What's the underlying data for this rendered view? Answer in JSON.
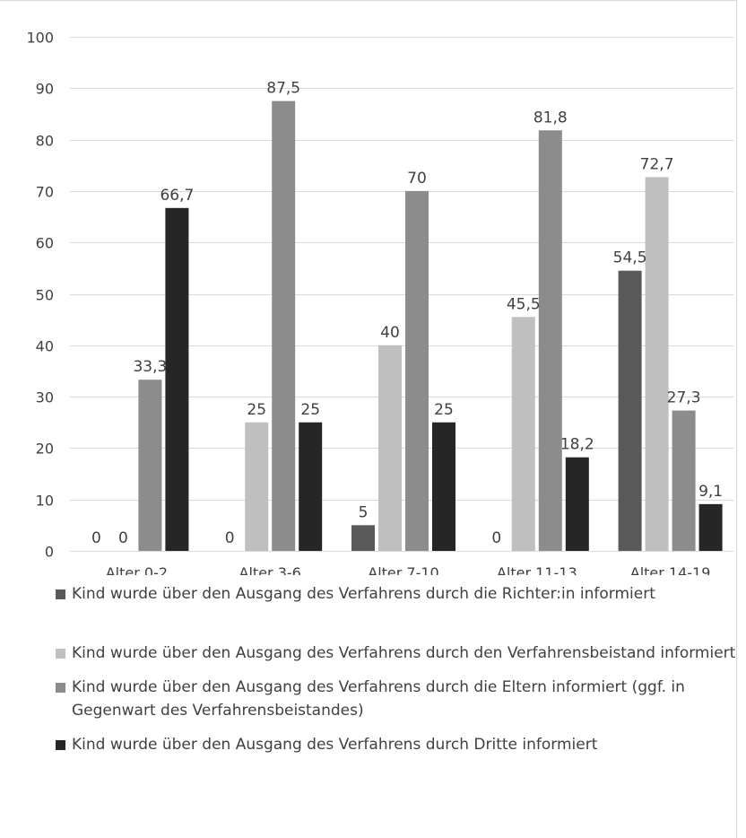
{
  "chart_data": {
    "type": "bar",
    "title": "",
    "xlabel": "",
    "ylabel": "",
    "ylim": [
      0,
      100
    ],
    "yticks": [
      0,
      10,
      20,
      30,
      40,
      50,
      60,
      70,
      80,
      90,
      100
    ],
    "grid": true,
    "legend_position": "bottom",
    "categories": [
      "Alter 0-2",
      "Alter 3-6",
      "Alter 7-10",
      "Alter 11-13",
      "Alter 14-19"
    ],
    "series": [
      {
        "name": "Kind wurde über den Ausgang des Verfahrens durch die Richter:in informiert",
        "color": "#595959",
        "values": [
          0,
          0,
          5,
          0,
          54.5
        ],
        "labels": [
          "0",
          "0",
          "5",
          "0",
          "54,5"
        ]
      },
      {
        "name": "Kind wurde über den Ausgang des Verfahrens durch den Verfahrensbeistand informiert",
        "color": "#bfbfbf",
        "values": [
          0,
          25,
          40,
          45.5,
          72.7
        ],
        "labels": [
          "0",
          "25",
          "40",
          "45,5",
          "72,7"
        ]
      },
      {
        "name": "Kind wurde über den Ausgang des Verfahrens durch die Eltern informiert (ggf. in Gegenwart des Verfahrensbeistandes)",
        "color": "#8c8c8c",
        "values": [
          33.3,
          87.5,
          70,
          81.8,
          27.3
        ],
        "labels": [
          "33,3",
          "87,5",
          "70",
          "81,8",
          "27,3"
        ]
      },
      {
        "name": "Kind wurde über den Ausgang des Verfahrens durch Dritte informiert",
        "color": "#262626",
        "values": [
          66.7,
          25,
          25,
          18.2,
          9.1
        ],
        "labels": [
          "66,7",
          "25",
          "25",
          "18,2",
          "9,1"
        ]
      }
    ]
  }
}
